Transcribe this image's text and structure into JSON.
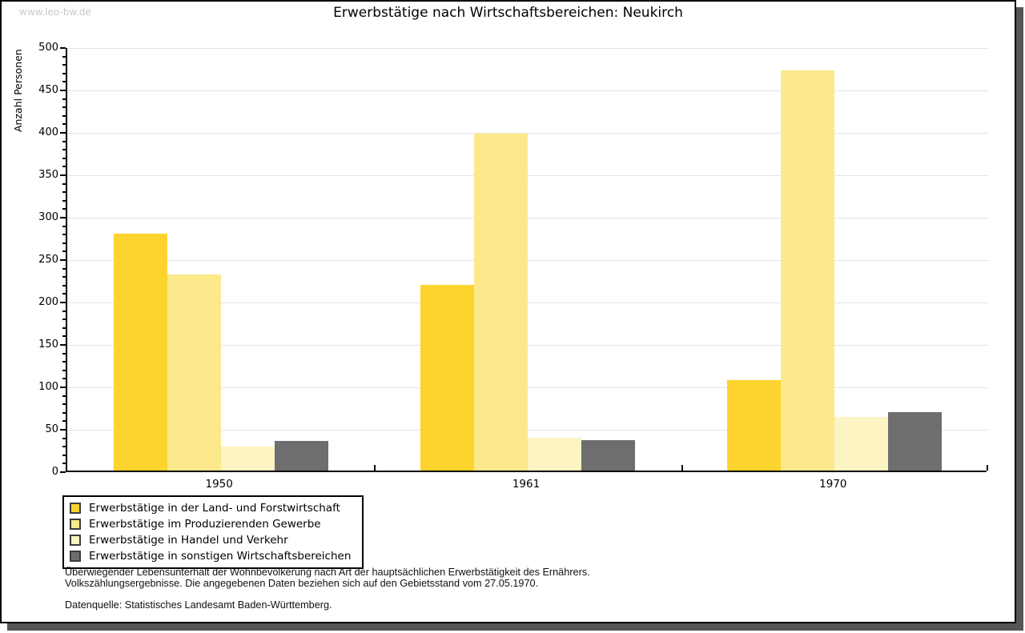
{
  "watermark": "www.leo-bw.de",
  "title": "Erwerbstätige nach Wirtschaftsbereichen: Neukirch",
  "chart_data": {
    "type": "bar",
    "title": "Erwerbstätige nach Wirtschaftsbereichen: Neukirch",
    "ylabel": "Anzahl Personen",
    "xlabel": "",
    "ylim": [
      0,
      500
    ],
    "ytick_step": 50,
    "y_minor_step": 10,
    "grid": true,
    "legend_position": "bottom-left",
    "categories": [
      "1950",
      "1961",
      "1970"
    ],
    "series": [
      {
        "name": "Erwerbstätige in der Land- und Forstwirtschaft",
        "color": "#FDD32D",
        "values": [
          279,
          219,
          107
        ]
      },
      {
        "name": "Erwerbstätige im Produzierenden Gewerbe",
        "color": "#FBE98B",
        "values": [
          231,
          397,
          472
        ]
      },
      {
        "name": "Erwerbstätige in Handel und Verkehr",
        "color": "#FCF4C3",
        "values": [
          28,
          39,
          63
        ]
      },
      {
        "name": "Erwerbstätige in sonstigen Wirtschaftsbereichen",
        "color": "#6E6E6E",
        "values": [
          35,
          36,
          69
        ]
      }
    ],
    "axis_color": "#000000",
    "gridline_color": "#E3E3E3"
  },
  "footnote": {
    "line1": "Überwiegender Lebensunterhalt der Wohnbevölkerung nach Art der hauptsächlichen Erwerbstätigkeit des Ernährers.",
    "line2": "Volkszählungsergebnisse. Die angegebenen Daten beziehen sich auf den Gebietsstand vom 27.05.1970.",
    "source": "Datenquelle: Statistisches Landesamt Baden-Württemberg."
  }
}
